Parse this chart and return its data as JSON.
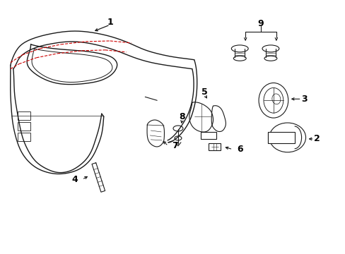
{
  "background_color": "#ffffff",
  "line_color": "#1a1a1a",
  "red_dash_color": "#cc0000",
  "label_color": "#000000",
  "fig_width": 4.89,
  "fig_height": 3.6,
  "dpi": 100,
  "panel_lw": 1.0,
  "component_lw": 0.8
}
